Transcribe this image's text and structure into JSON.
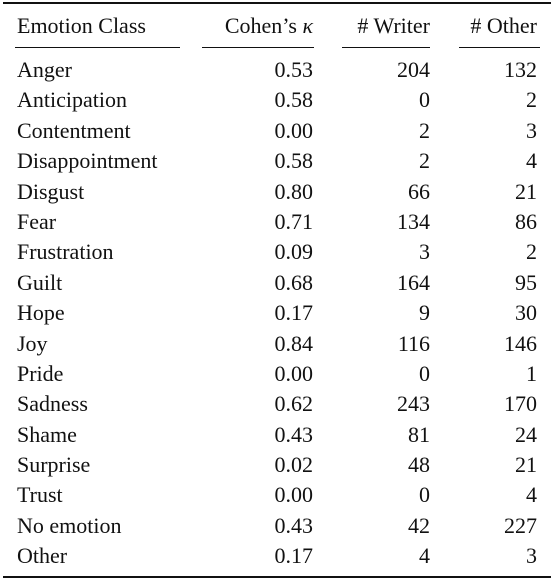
{
  "table": {
    "headers": {
      "emotion_class": "Emotion Class",
      "kappa_prefix": "Cohen’s ",
      "kappa_symbol": "κ",
      "writer": "# Writer",
      "other": "# Other"
    },
    "rows": [
      {
        "emotion": "Anger",
        "kappa": "0.53",
        "writer": "204",
        "other": "132"
      },
      {
        "emotion": "Anticipation",
        "kappa": "0.58",
        "writer": "0",
        "other": "2"
      },
      {
        "emotion": "Contentment",
        "kappa": "0.00",
        "writer": "2",
        "other": "3"
      },
      {
        "emotion": "Disappointment",
        "kappa": "0.58",
        "writer": "2",
        "other": "4"
      },
      {
        "emotion": "Disgust",
        "kappa": "0.80",
        "writer": "66",
        "other": "21"
      },
      {
        "emotion": "Fear",
        "kappa": "0.71",
        "writer": "134",
        "other": "86"
      },
      {
        "emotion": "Frustration",
        "kappa": "0.09",
        "writer": "3",
        "other": "2"
      },
      {
        "emotion": "Guilt",
        "kappa": "0.68",
        "writer": "164",
        "other": "95"
      },
      {
        "emotion": "Hope",
        "kappa": "0.17",
        "writer": "9",
        "other": "30"
      },
      {
        "emotion": "Joy",
        "kappa": "0.84",
        "writer": "116",
        "other": "146"
      },
      {
        "emotion": "Pride",
        "kappa": "0.00",
        "writer": "0",
        "other": "1"
      },
      {
        "emotion": "Sadness",
        "kappa": "0.62",
        "writer": "243",
        "other": "170"
      },
      {
        "emotion": "Shame",
        "kappa": "0.43",
        "writer": "81",
        "other": "24"
      },
      {
        "emotion": "Surprise",
        "kappa": "0.02",
        "writer": "48",
        "other": "21"
      },
      {
        "emotion": "Trust",
        "kappa": "0.00",
        "writer": "0",
        "other": "4"
      },
      {
        "emotion": "No emotion",
        "kappa": "0.43",
        "writer": "42",
        "other": "227"
      },
      {
        "emotion": "Other",
        "kappa": "0.17",
        "writer": "4",
        "other": "3"
      }
    ]
  }
}
